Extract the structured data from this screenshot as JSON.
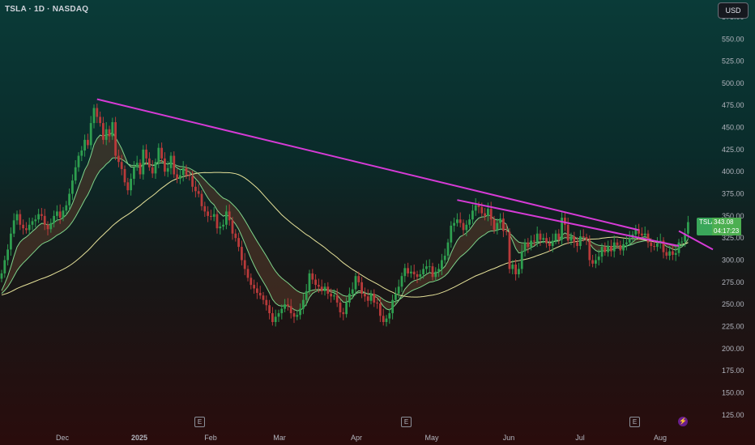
{
  "header": {
    "symbol_line": "TSLA · 1D · NASDAQ",
    "currency": "USD"
  },
  "price_tag": {
    "ticker": "TSLA",
    "price": "343.08",
    "countdown": "04:17:23"
  },
  "events": {
    "earnings": "E",
    "bolt": "⚡"
  },
  "colors": {
    "up": "#26a69a",
    "up_body": "#2e9e4f",
    "down": "#b83a3a",
    "trendline": "#d63bd6",
    "ema_fast": "#7fd38a",
    "ema_slow": "#e6e29a",
    "band_fill": "#5a3a2a"
  },
  "chart_data": {
    "type": "candlestick",
    "symbol": "TSLA",
    "interval": "1D",
    "exchange": "NASDAQ",
    "currency": "USD",
    "y_ticks": [
      575,
      550,
      525,
      500,
      475,
      450,
      425,
      400,
      375,
      350,
      325,
      300,
      275,
      250,
      225,
      200,
      175,
      150,
      125
    ],
    "y_tick_labels": [
      "575.00",
      "550.00",
      "525.00",
      "500.00",
      "475.00",
      "450.00",
      "425.00",
      "400.00",
      "375.00",
      "350.00",
      "325.00",
      "300.00",
      "275.00",
      "250.00",
      "225.00",
      "200.00",
      "175.00",
      "150.00",
      "125.00"
    ],
    "x_ticks": [
      "Dec",
      "2025",
      "Feb",
      "Mar",
      "Apr",
      "May",
      "Jun",
      "Jul",
      "Aug"
    ],
    "ylim": [
      112,
      585
    ],
    "closes": [
      285,
      300,
      312,
      330,
      345,
      352,
      340,
      336,
      334,
      340,
      344,
      346,
      352,
      350,
      340,
      335,
      342,
      350,
      355,
      348,
      356,
      362,
      375,
      390,
      405,
      418,
      424,
      436,
      430,
      455,
      472,
      462,
      455,
      436,
      448,
      440,
      456,
      418,
      411,
      403,
      388,
      379,
      392,
      405,
      410,
      397,
      425,
      415,
      405,
      398,
      411,
      427,
      415,
      400,
      404,
      418,
      397,
      392,
      396,
      404,
      396,
      395,
      383,
      378,
      375,
      361,
      355,
      350,
      349,
      352,
      336,
      338,
      340,
      355,
      345,
      330,
      325,
      315,
      300,
      290,
      280,
      272,
      268,
      263,
      260,
      255,
      249,
      240,
      230,
      236,
      240,
      245,
      250,
      248,
      240,
      236,
      238,
      245,
      255,
      265,
      285,
      278,
      272,
      270,
      265,
      270,
      262,
      259,
      260,
      252,
      241,
      239,
      252,
      262,
      267,
      282,
      275,
      262,
      259,
      254,
      262,
      252,
      251,
      237,
      230,
      234,
      240,
      255,
      262,
      270,
      282,
      291,
      285,
      287,
      284,
      281,
      284,
      290,
      293,
      293,
      281,
      287,
      290,
      300,
      305,
      320,
      339,
      342,
      346,
      342,
      334,
      340,
      346,
      356,
      362,
      360,
      353,
      350,
      358,
      346,
      334,
      342,
      347,
      333,
      332,
      290,
      295,
      284,
      290,
      310,
      320,
      315,
      322,
      321,
      330,
      323,
      325,
      319,
      316,
      322,
      330,
      323,
      348,
      340,
      322,
      327,
      320,
      316,
      327,
      326,
      323,
      300,
      296,
      300,
      304,
      315,
      309,
      316,
      310,
      320,
      317,
      311,
      318,
      320,
      325,
      329,
      335,
      330,
      328,
      330,
      320,
      316,
      315,
      319,
      322,
      309,
      305,
      310,
      306,
      308,
      320,
      321,
      330,
      343
    ],
    "trendlines": [
      {
        "from": {
          "bar": 31,
          "price": 482
        },
        "to": {
          "bar": 207,
          "price": 334
        }
      },
      {
        "from": {
          "bar": 148,
          "price": 368
        },
        "to": {
          "bar": 220,
          "price": 316
        }
      }
    ],
    "indicators": [
      "EMA fast",
      "EMA slow",
      "SMA long"
    ],
    "last_price": 343.08,
    "grid": false
  }
}
